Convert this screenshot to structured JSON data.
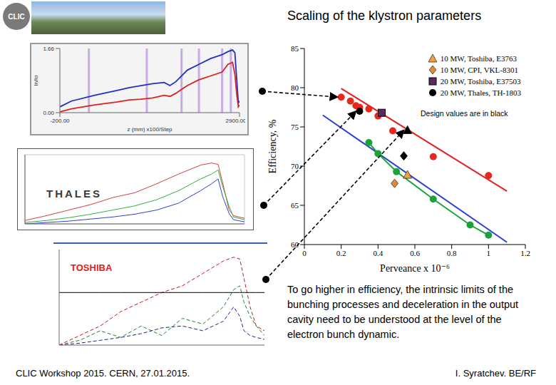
{
  "title": "Scaling of the klystron parameters",
  "logo": "CLIC",
  "text": "To go higher in efficiency, the intrinsic limits of the bunching processes and deceleration in the output cavity need to be understood at the level of the electron bunch dynamic.",
  "footer_left": "CLIC Workshop 2015. CERN, 27.01.2015.",
  "footer_right": "I. Syratchev. BE/RF",
  "chart_data": [
    {
      "type": "scatter",
      "x_label": "Perveance x 10⁻⁶",
      "y_label": "Efficiency, %",
      "xlim": [
        0,
        1.2
      ],
      "xticks": [
        0,
        0.2,
        0.4,
        0.6,
        0.8,
        1,
        1.2
      ],
      "ylim": [
        60,
        85
      ],
      "yticks": [
        60,
        65,
        70,
        75,
        80,
        85
      ],
      "grid": false,
      "legend": "upper right",
      "annotations": [
        "Design values are in black"
      ],
      "series": [
        {
          "type": "line",
          "color": "#e02020",
          "x": [
            0.2,
            1.1
          ],
          "values": [
            79.9,
            66.8
          ]
        },
        {
          "type": "line",
          "color": "#2a3fd0",
          "x": [
            0.1,
            1.1
          ],
          "values": [
            76.5,
            60.3
          ]
        },
        {
          "color": "#e8281e",
          "marker": "circle",
          "x": [
            0.2,
            0.25,
            0.28,
            0.3,
            0.35,
            0.4,
            0.48,
            0.7,
            1.0
          ],
          "values": [
            78.8,
            78.3,
            77.7,
            77.5,
            77.3,
            76.4,
            74.5,
            71.2,
            68.8
          ]
        },
        {
          "color": "#1aa33a",
          "marker": "circle",
          "line_style": "solid",
          "x": [
            0.35,
            0.4,
            0.5,
            0.7,
            0.9,
            1.0
          ],
          "values": [
            73.0,
            71.6,
            69.3,
            65.8,
            62.5,
            61.2
          ]
        },
        {
          "name": "10 MW, Toshiba, E3763",
          "color": "#f0a040",
          "marker": "triangle",
          "x": [
            0.56
          ],
          "values": [
            68.9
          ]
        },
        {
          "name": "10 MW, CPI, VKL-8301",
          "color": "#e08a3a",
          "marker": "diamond",
          "x": [
            0.49
          ],
          "values": [
            67.8
          ]
        },
        {
          "name": "20 MW, Toshiba, E37503",
          "color": "#5a2a5e",
          "marker": "square",
          "x": [
            0.42
          ],
          "values": [
            76.8
          ]
        },
        {
          "name": "20 MW, Thales, TH-1803",
          "color": "#000000",
          "marker": "circle",
          "x": [
            0.3
          ],
          "values": [
            77.0
          ]
        },
        {
          "color": "#000000",
          "marker": "triangle",
          "x": [
            0.56
          ],
          "values": [
            74.6
          ]
        },
        {
          "color": "#000000",
          "marker": "diamond",
          "x": [
            0.54
          ],
          "values": [
            71.3
          ]
        }
      ]
    },
    {
      "type": "line",
      "x_label": "z (mm) x100/Step",
      "y_label": "In/Io",
      "xlim": [
        -200,
        2900
      ],
      "xticks": [
        {
          "value": -200,
          "label": "-200.00"
        },
        {
          "value": 2900,
          "label": "2900.00"
        }
      ],
      "ylim": [
        0,
        1.66
      ],
      "yticks": [
        {
          "value": 0,
          "label": "0.00"
        },
        {
          "value": 1.66,
          "label": "1.66"
        }
      ],
      "cavity_z": [
        300,
        1300,
        1900,
        2200,
        2600,
        2750
      ],
      "x": [
        -200,
        0,
        400,
        800,
        1000,
        1200,
        1400,
        1600,
        1700,
        1800,
        2000,
        2200,
        2400,
        2600,
        2700,
        2780,
        2820,
        2850,
        2880,
        2900
      ],
      "series": [
        {
          "color": "#2030c0",
          "values": [
            0.15,
            0.3,
            0.45,
            0.58,
            0.65,
            0.7,
            0.75,
            0.78,
            0.7,
            0.8,
            1.1,
            1.25,
            1.4,
            1.5,
            1.58,
            1.62,
            1.55,
            0.9,
            0.25,
            0.3
          ]
        },
        {
          "color": "#e02020",
          "values": [
            0.02,
            0.1,
            0.2,
            0.28,
            0.33,
            0.35,
            0.38,
            0.45,
            0.42,
            0.5,
            0.7,
            0.85,
            0.95,
            1.05,
            1.25,
            1.3,
            1.0,
            0.5,
            0.15,
            0.2
          ]
        }
      ]
    },
    {
      "type": "line",
      "annotations": [
        "THALES"
      ],
      "tick_labels": false,
      "grid": true,
      "xlim": [
        0,
        100
      ],
      "ylim": [
        0,
        100
      ],
      "x": [
        0,
        10,
        20,
        30,
        40,
        50,
        60,
        70,
        80,
        85,
        88,
        90,
        93,
        95,
        100
      ],
      "series": [
        {
          "color": "#d04040",
          "values": [
            5,
            12,
            20,
            28,
            38,
            45,
            58,
            72,
            85,
            88,
            86,
            60,
            20,
            12,
            8
          ]
        },
        {
          "color": "#30b040",
          "values": [
            2,
            5,
            9,
            14,
            20,
            26,
            35,
            48,
            65,
            72,
            78,
            55,
            25,
            10,
            6
          ]
        },
        {
          "color": "#3040d0",
          "values": [
            0,
            2,
            4,
            7,
            10,
            14,
            20,
            30,
            48,
            58,
            65,
            40,
            15,
            6,
            3
          ]
        }
      ]
    },
    {
      "type": "line",
      "annotations": [
        "TOSHIBA"
      ],
      "tick_labels": false,
      "grid": false,
      "xlim": [
        0,
        100
      ],
      "ylim": [
        0,
        100
      ],
      "x": [
        0,
        10,
        20,
        30,
        40,
        50,
        60,
        70,
        80,
        85,
        88,
        90,
        93,
        96,
        100
      ],
      "series": [
        {
          "color": "#b02020",
          "line_style": "dashed",
          "values": [
            0,
            10,
            20,
            35,
            45,
            55,
            62,
            75,
            88,
            92,
            90,
            70,
            40,
            20,
            15
          ]
        },
        {
          "color": "#208030",
          "line_style": "dashed",
          "values": [
            0,
            5,
            15,
            8,
            20,
            10,
            28,
            22,
            40,
            58,
            62,
            45,
            30,
            20,
            10
          ]
        },
        {
          "color": "#202080",
          "line_style": "dashed",
          "values": [
            0,
            2,
            5,
            8,
            12,
            18,
            20,
            15,
            25,
            40,
            30,
            15,
            10,
            8,
            6
          ]
        },
        {
          "color": "#000000",
          "line_style": "solid",
          "values": [
            55,
            55,
            55,
            55,
            55,
            55,
            55,
            55,
            55,
            55,
            55,
            55,
            55,
            55,
            55
          ]
        }
      ]
    }
  ]
}
